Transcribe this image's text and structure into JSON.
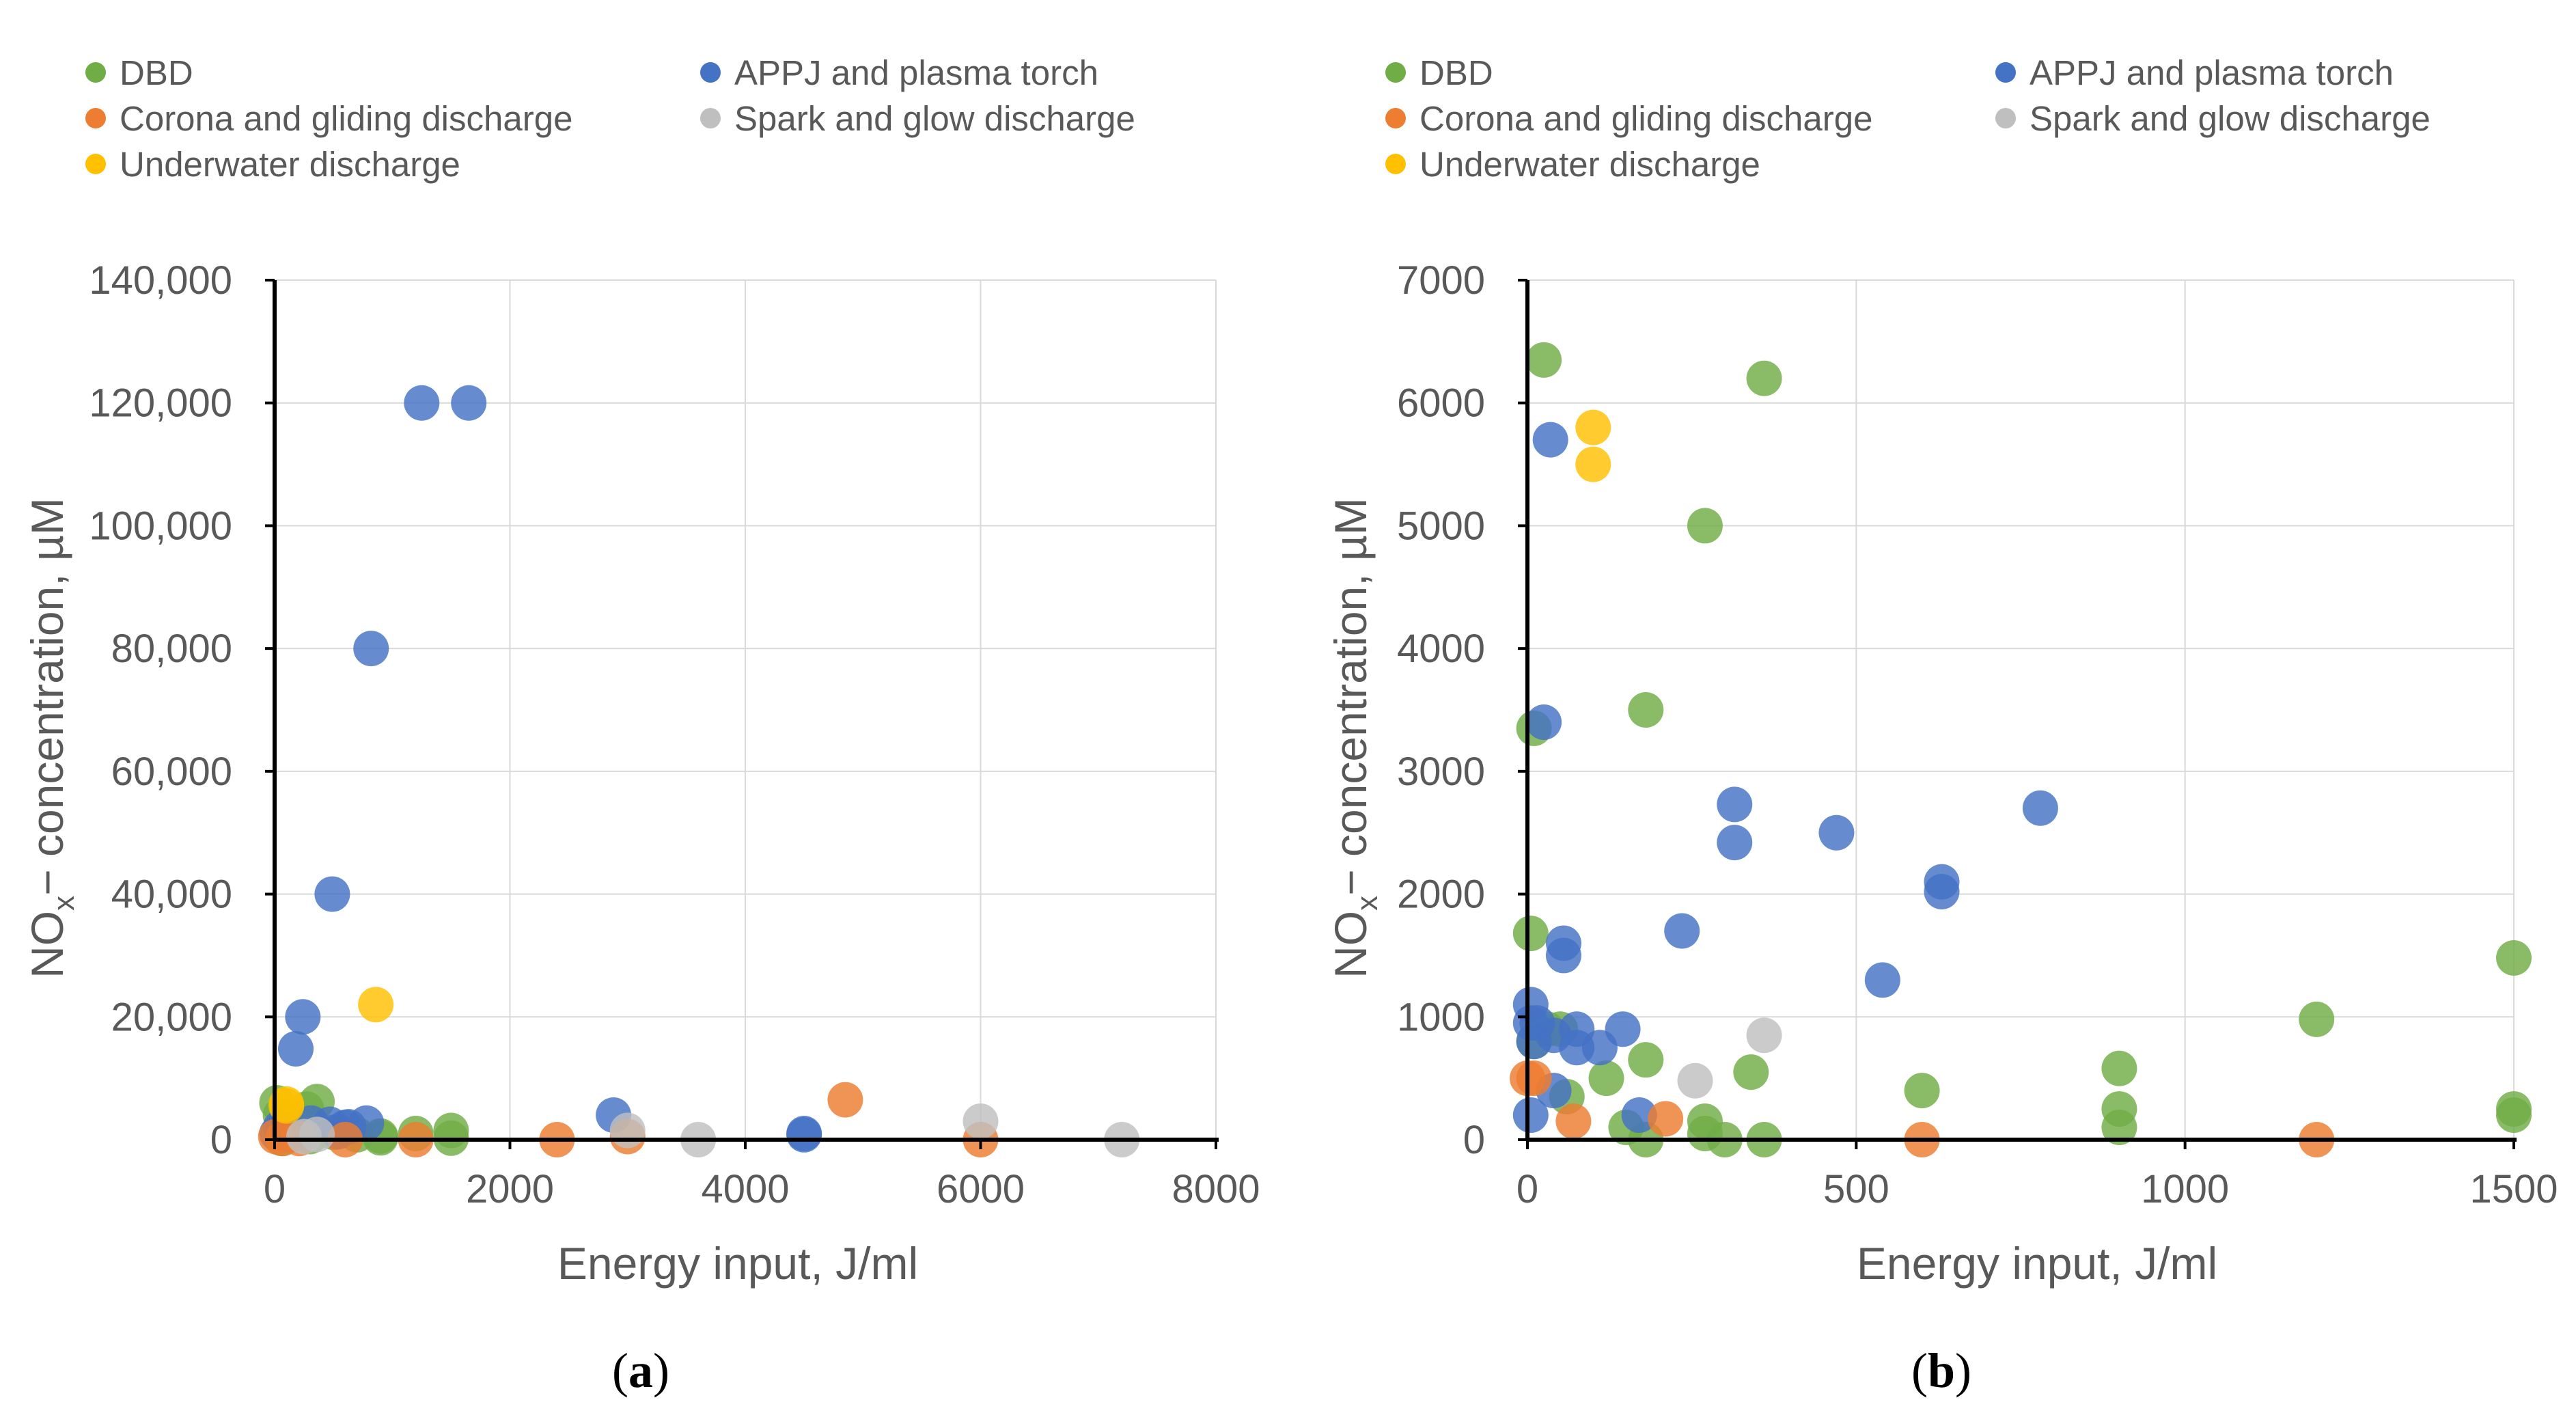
{
  "chart_data": [
    {
      "type": "scatter",
      "panel_label": "a",
      "xlabel": "Energy input, J/ml",
      "ylabel": "NOx− concentration, µM",
      "xlim": [
        0,
        8000
      ],
      "ylim": [
        0,
        140000
      ],
      "xticks": [
        0,
        2000,
        4000,
        6000,
        8000
      ],
      "xtick_labels": [
        "0",
        "2000",
        "4000",
        "6000",
        "8000"
      ],
      "yticks": [
        0,
        20000,
        40000,
        60000,
        80000,
        100000,
        120000,
        140000
      ],
      "ytick_labels": [
        "0",
        "20,000",
        "40,000",
        "60,000",
        "80,000",
        "100,000",
        "120,000",
        "140,000"
      ],
      "series": [
        {
          "name": "DBD",
          "color": "#70ad47",
          "points": [
            [
              20,
              6000
            ],
            [
              50,
              4000
            ],
            [
              80,
              1500
            ],
            [
              120,
              800
            ],
            [
              200,
              1000
            ],
            [
              300,
              500
            ],
            [
              360,
              6200
            ],
            [
              500,
              1200
            ],
            [
              700,
              800
            ],
            [
              900,
              600
            ],
            [
              900,
              300
            ],
            [
              1200,
              1000
            ],
            [
              1500,
              1500
            ],
            [
              1500,
              250
            ],
            [
              60,
              200
            ],
            [
              180,
              3500
            ],
            [
              270,
              5000
            ]
          ]
        },
        {
          "name": "APPJ and plasma torch",
          "color": "#4472c4",
          "points": [
            [
              1250,
              120000
            ],
            [
              1650,
              120000
            ],
            [
              820,
              80000
            ],
            [
              490,
              40000
            ],
            [
              240,
              20000
            ],
            [
              180,
              14800
            ],
            [
              780,
              2700
            ],
            [
              630,
              2100
            ],
            [
              540,
              1300
            ],
            [
              470,
              2500
            ],
            [
              310,
              2700
            ],
            [
              50,
              2000
            ],
            [
              100,
              1500
            ],
            [
              20,
              1000
            ],
            [
              150,
              900
            ],
            [
              600,
              2000
            ],
            [
              2880,
              4000
            ],
            [
              4500,
              800
            ],
            [
              4500,
              1000
            ]
          ]
        },
        {
          "name": "Corona and gliding discharge",
          "color": "#ed7d31",
          "points": [
            [
              10,
              500
            ],
            [
              70,
              200
            ],
            [
              210,
              200
            ],
            [
              600,
              0
            ],
            [
              1200,
              0
            ],
            [
              2400,
              0
            ],
            [
              3000,
              500
            ],
            [
              4850,
              6500
            ],
            [
              6000,
              0
            ]
          ]
        },
        {
          "name": "Spark and glow discharge",
          "color": "#bfbfbf",
          "points": [
            [
              360,
              850
            ],
            [
              250,
              500
            ],
            [
              3000,
              1500
            ],
            [
              3600,
              0
            ],
            [
              6000,
              3000
            ],
            [
              7200,
              0
            ]
          ]
        },
        {
          "name": "Underwater discharge",
          "color": "#ffc000",
          "points": [
            [
              100,
              5800
            ],
            [
              100,
              5500
            ],
            [
              860,
              22000
            ]
          ]
        }
      ]
    },
    {
      "type": "scatter",
      "panel_label": "b",
      "xlabel": "Energy input, J/ml",
      "ylabel": "NOx− concentration, µM",
      "xlim": [
        0,
        1500
      ],
      "ylim": [
        0,
        7000
      ],
      "xticks": [
        0,
        500,
        1000,
        1500
      ],
      "xtick_labels": [
        "0",
        "500",
        "1000",
        "1500"
      ],
      "yticks": [
        0,
        1000,
        2000,
        3000,
        4000,
        5000,
        6000,
        7000
      ],
      "ytick_labels": [
        "0",
        "1000",
        "2000",
        "3000",
        "4000",
        "5000",
        "6000",
        "7000"
      ],
      "series": [
        {
          "name": "DBD",
          "color": "#70ad47",
          "points": [
            [
              25,
              6350
            ],
            [
              360,
              6200
            ],
            [
              270,
              5000
            ],
            [
              180,
              3500
            ],
            [
              10,
              3350
            ],
            [
              5,
              1680
            ],
            [
              10,
              800
            ],
            [
              30,
              900
            ],
            [
              50,
              900
            ],
            [
              60,
              350
            ],
            [
              120,
              500
            ],
            [
              150,
              100
            ],
            [
              180,
              650
            ],
            [
              180,
              0
            ],
            [
              270,
              50
            ],
            [
              270,
              150
            ],
            [
              300,
              0
            ],
            [
              340,
              550
            ],
            [
              360,
              0
            ],
            [
              600,
              400
            ],
            [
              900,
              100
            ],
            [
              900,
              250
            ],
            [
              900,
              580
            ],
            [
              1200,
              980
            ],
            [
              1500,
              1480
            ],
            [
              1500,
              250
            ],
            [
              1500,
              200
            ]
          ]
        },
        {
          "name": "APPJ and plasma torch",
          "color": "#4472c4",
          "points": [
            [
              35,
              5700
            ],
            [
              25,
              3400
            ],
            [
              315,
              2730
            ],
            [
              315,
              2420
            ],
            [
              780,
              2700
            ],
            [
              470,
              2500
            ],
            [
              630,
              2100
            ],
            [
              630,
              2020
            ],
            [
              55,
              1600
            ],
            [
              55,
              1500
            ],
            [
              235,
              1700
            ],
            [
              540,
              1300
            ],
            [
              5,
              1100
            ],
            [
              5,
              950
            ],
            [
              15,
              950
            ],
            [
              40,
              850
            ],
            [
              75,
              900
            ],
            [
              75,
              750
            ],
            [
              110,
              750
            ],
            [
              145,
              900
            ],
            [
              10,
              800
            ],
            [
              40,
              400
            ],
            [
              170,
              200
            ],
            [
              5,
              200
            ]
          ]
        },
        {
          "name": "Corona and gliding discharge",
          "color": "#ed7d31",
          "points": [
            [
              0,
              500
            ],
            [
              10,
              500
            ],
            [
              70,
              150
            ],
            [
              210,
              170
            ],
            [
              600,
              0
            ],
            [
              1200,
              0
            ]
          ]
        },
        {
          "name": "Spark and glow discharge",
          "color": "#bfbfbf",
          "points": [
            [
              360,
              850
            ],
            [
              255,
              480
            ]
          ]
        },
        {
          "name": "Underwater discharge",
          "color": "#ffc000",
          "points": [
            [
              100,
              5800
            ],
            [
              100,
              5500
            ]
          ]
        }
      ]
    }
  ]
}
